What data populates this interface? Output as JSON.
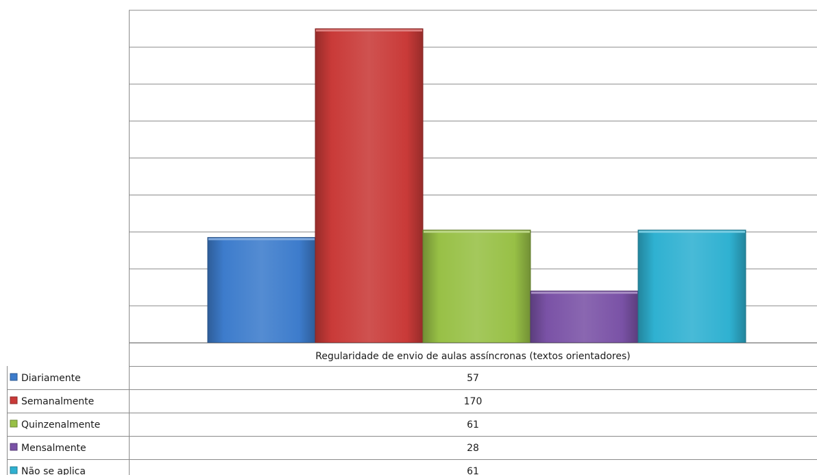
{
  "chart_data": {
    "type": "bar",
    "categories": [
      "Regularidade de envio de aulas assíncronas (textos orientadores)"
    ],
    "series": [
      {
        "name": "Diariamente",
        "values": [
          57
        ],
        "color": "#3d7ccc"
      },
      {
        "name": "Semanalmente",
        "values": [
          170
        ],
        "color": "#c93a38"
      },
      {
        "name": "Quinzenalmente",
        "values": [
          61
        ],
        "color": "#98c046"
      },
      {
        "name": "Mensalmente",
        "values": [
          28
        ],
        "color": "#7a52a6"
      },
      {
        "name": "Não se aplica",
        "values": [
          61
        ],
        "color": "#2fb1d1"
      }
    ],
    "ylim": [
      0,
      180
    ],
    "grid": true,
    "legend": "data-table-left"
  }
}
